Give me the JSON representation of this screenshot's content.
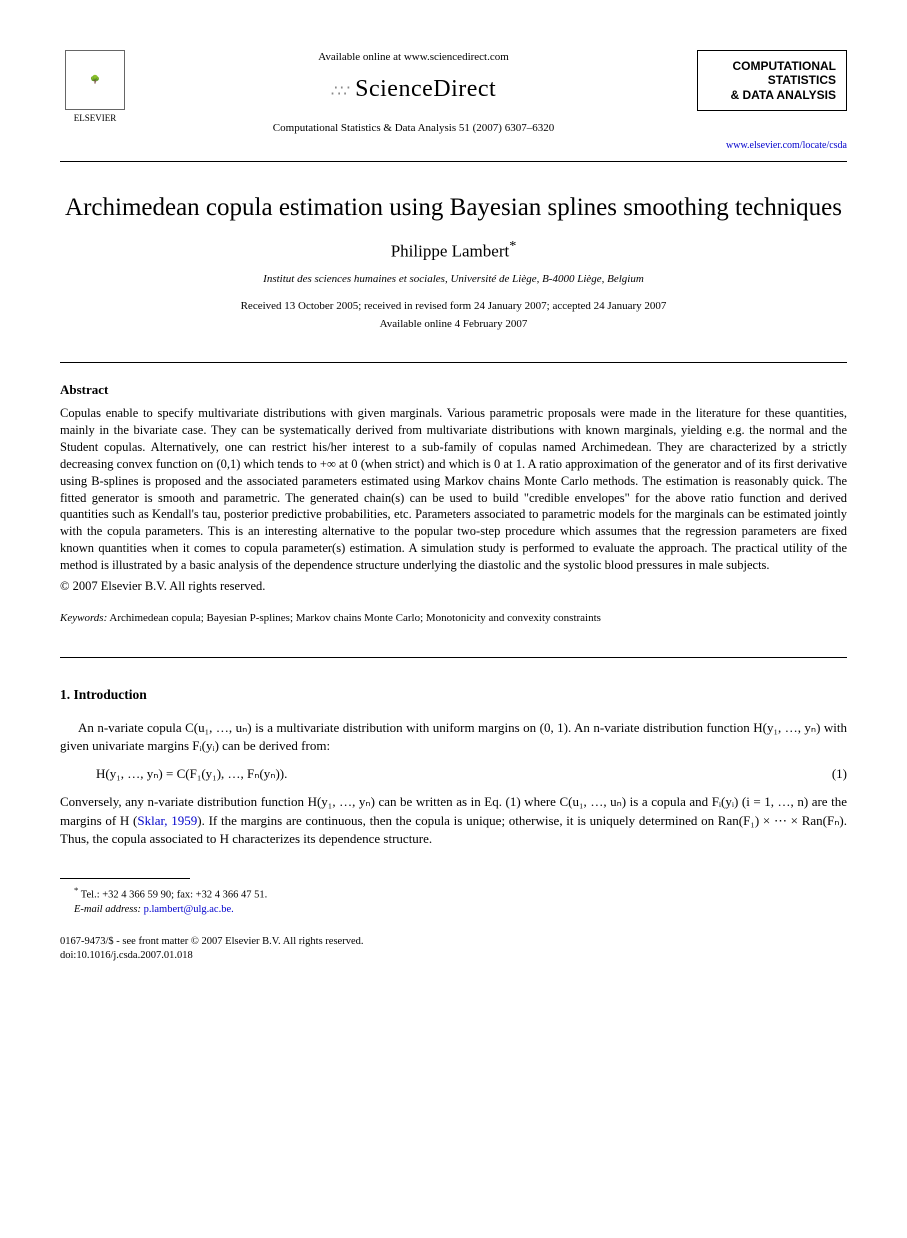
{
  "header": {
    "publisher_label": "ELSEVIER",
    "available_text": "Available online at www.sciencedirect.com",
    "brand": "ScienceDirect",
    "journal_ref": "Computational Statistics & Data Analysis 51 (2007) 6307–6320",
    "journal_box_line1": "COMPUTATIONAL",
    "journal_box_line2": "STATISTICS",
    "journal_box_line3": "& DATA ANALYSIS",
    "journal_url": "www.elsevier.com/locate/csda"
  },
  "article": {
    "title": "Archimedean copula estimation using Bayesian splines smoothing techniques",
    "author": "Philippe Lambert",
    "author_marker": "*",
    "affiliation": "Institut des sciences humaines et sociales, Université de Liège, B-4000 Liège, Belgium",
    "dates_line1": "Received 13 October 2005; received in revised form 24 January 2007; accepted 24 January 2007",
    "dates_line2": "Available online 4 February 2007"
  },
  "abstract": {
    "heading": "Abstract",
    "body": "Copulas enable to specify multivariate distributions with given marginals. Various parametric proposals were made in the literature for these quantities, mainly in the bivariate case. They can be systematically derived from multivariate distributions with known marginals, yielding e.g. the normal and the Student copulas. Alternatively, one can restrict his/her interest to a sub-family of copulas named Archimedean. They are characterized by a strictly decreasing convex function on (0,1) which tends to +∞ at 0 (when strict) and which is 0 at 1. A ratio approximation of the generator and of its first derivative using B-splines is proposed and the associated parameters estimated using Markov chains Monte Carlo methods. The estimation is reasonably quick. The fitted generator is smooth and parametric. The generated chain(s) can be used to build \"credible envelopes\" for the above ratio function and derived quantities such as Kendall's tau, posterior predictive probabilities, etc. Parameters associated to parametric models for the marginals can be estimated jointly with the copula parameters. This is an interesting alternative to the popular two-step procedure which assumes that the regression parameters are fixed known quantities when it comes to copula parameter(s) estimation. A simulation study is performed to evaluate the approach. The practical utility of the method is illustrated by a basic analysis of the dependence structure underlying the diastolic and the systolic blood pressures in male subjects.",
    "copyright": "© 2007 Elsevier B.V. All rights reserved."
  },
  "keywords": {
    "label": "Keywords:",
    "text": " Archimedean copula; Bayesian P-splines; Markov chains Monte Carlo; Monotonicity and convexity constraints"
  },
  "intro": {
    "heading": "1.  Introduction",
    "p1_a": "An n-variate copula C(u₁, …, uₙ) is a multivariate distribution with uniform margins on (0, 1). An n-variate distribution function H(y₁, …, yₙ) with given univariate margins Fᵢ(yᵢ) can be derived from:",
    "eq1": "H(y₁, …, yₙ) = C(F₁(y₁), …, Fₙ(yₙ)).",
    "eq1_num": "(1)",
    "p2_a": "Conversely, any n-variate distribution function H(y₁, …, yₙ) can be written as in Eq. (1) where C(u₁, …, uₙ) is a copula and Fᵢ(yᵢ)  (i = 1, …, n) are the margins of H (",
    "p2_ref": "Sklar, 1959",
    "p2_b": "). If the margins are continuous, then the copula is unique; otherwise, it is uniquely determined on Ran(F₁) × ⋯ × Ran(Fₙ). Thus, the copula associated to H characterizes its dependence structure."
  },
  "footnote": {
    "marker": "*",
    "contact": " Tel.: +32 4 366 59 90; fax: +32 4 366 47 51.",
    "email_label": "E-mail address:",
    "email": " p.lambert@ulg.ac.be."
  },
  "footer": {
    "line1": "0167-9473/$ - see front matter © 2007 Elsevier B.V. All rights reserved.",
    "line2": "doi:10.1016/j.csda.2007.01.018"
  }
}
